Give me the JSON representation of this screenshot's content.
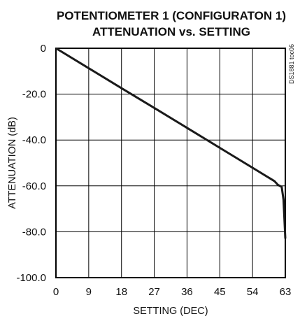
{
  "chart_data": {
    "type": "line",
    "title": "POTENTIOMETER 1 (CONFIGURATON 1)",
    "subtitle": "ATTENUATION vs. SETTING",
    "xlabel": "SETTING (DEC)",
    "ylabel": "ATTENUATION (dB)",
    "xlim": [
      0,
      63
    ],
    "ylim": [
      -100,
      0
    ],
    "x_ticks": [
      0,
      9,
      18,
      27,
      36,
      45,
      54,
      63
    ],
    "x_tick_labels": [
      "0",
      "9",
      "18",
      "27",
      "36",
      "45",
      "54",
      "63"
    ],
    "y_ticks": [
      0,
      -20,
      -40,
      -60,
      -80,
      -100
    ],
    "y_tick_labels": [
      "0",
      "-20.0",
      "-40.0",
      "-60.0",
      "-80.0",
      "-100.0"
    ],
    "grid": true,
    "series": [
      {
        "x": [
          0,
          9,
          18,
          27,
          36,
          45,
          54,
          60,
          61,
          62,
          62.5,
          63
        ],
        "y": [
          0,
          -8.7,
          -17.4,
          -26.0,
          -34.7,
          -43.4,
          -52.1,
          -57.9,
          -59.6,
          -60.4,
          -66,
          -83
        ]
      }
    ],
    "annotation": "DS1881 toc06"
  }
}
